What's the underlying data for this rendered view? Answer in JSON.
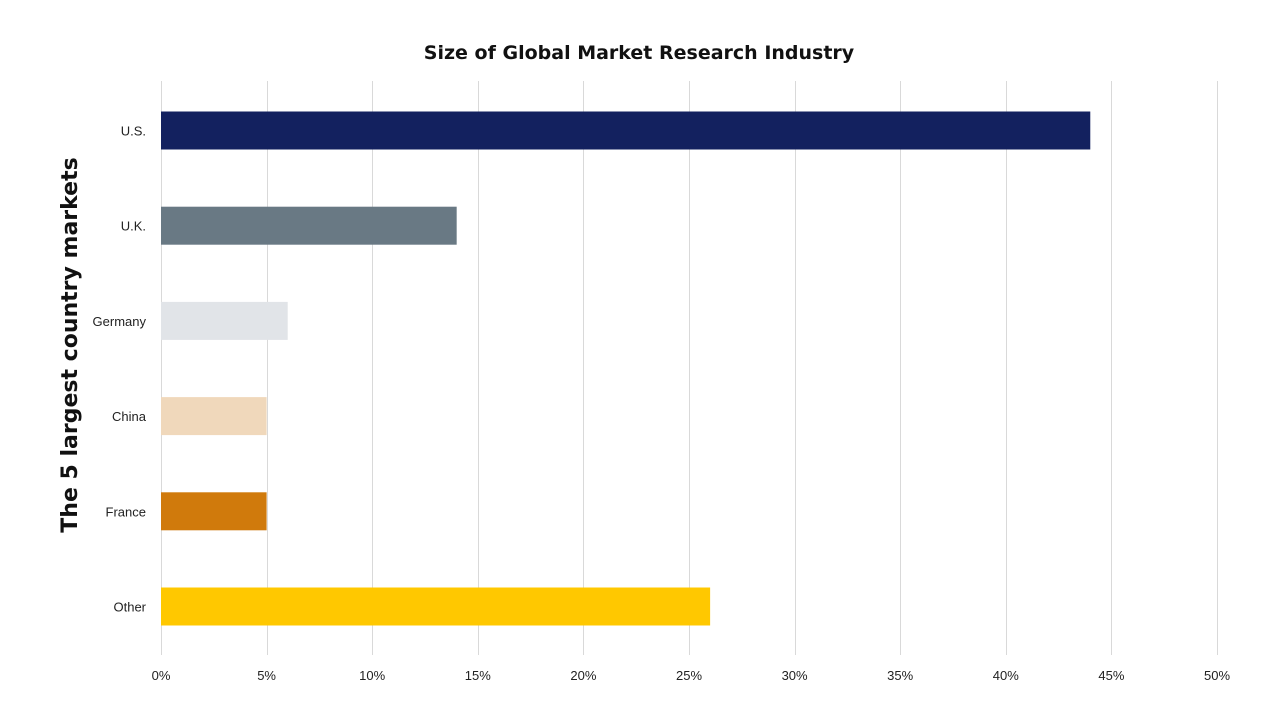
{
  "chart_data": {
    "type": "bar",
    "orientation": "horizontal",
    "title": "Size of Global Market Research Industry",
    "xlabel": "",
    "ylabel": "The 5 largest country markets",
    "categories": [
      "U.S.",
      "U.K.",
      "Germany",
      "China",
      "France",
      "Other"
    ],
    "values": [
      44,
      14,
      6,
      5,
      5,
      26
    ],
    "colors": [
      "#13215f",
      "#697984",
      "#e1e4e8",
      "#f0d8bb",
      "#d07a0c",
      "#ffc800"
    ],
    "xlim": [
      0,
      50
    ],
    "xticks": [
      0,
      5,
      10,
      15,
      20,
      25,
      30,
      35,
      40,
      45,
      50
    ],
    "xtick_labels": [
      "0%",
      "5%",
      "10%",
      "15%",
      "20%",
      "25%",
      "30%",
      "35%",
      "40%",
      "45%",
      "50%"
    ],
    "grid": "vertical",
    "legend": "none"
  }
}
